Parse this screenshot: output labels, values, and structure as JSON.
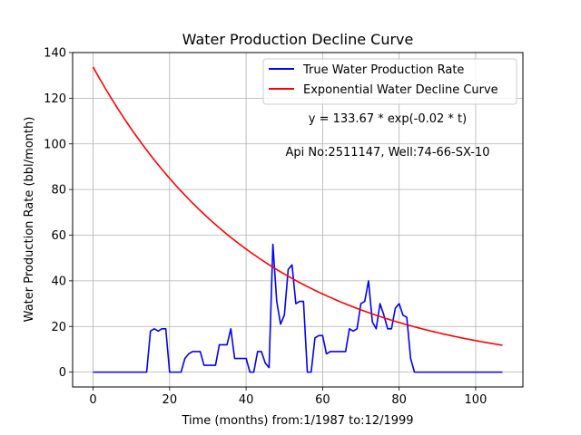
{
  "chart_data": {
    "type": "line",
    "title": "Water Production Decline Curve",
    "xlabel": "Time (months) from:1/1987 to:12/1999",
    "ylabel": "Water Production Rate (bbl/month)",
    "xlim": [
      -5.35,
      112.35
    ],
    "ylim": [
      -6.5,
      140
    ],
    "xticks": [
      0,
      20,
      40,
      60,
      80,
      100
    ],
    "yticks": [
      0,
      20,
      40,
      60,
      80,
      100,
      120,
      140
    ],
    "grid": true,
    "legend_position": "top-right",
    "annotations": [
      "y = 133.67 * exp(-0.02 * t)",
      "Api No:2511147, Well:74-66-SX-10"
    ],
    "series": [
      {
        "name": "True Water Production Rate",
        "color": "#0000ff",
        "style": "line",
        "x": [
          0,
          1,
          2,
          3,
          4,
          5,
          6,
          7,
          8,
          9,
          10,
          11,
          12,
          13,
          14,
          15,
          16,
          17,
          18,
          19,
          20,
          21,
          22,
          23,
          24,
          25,
          26,
          27,
          28,
          29,
          30,
          31,
          32,
          33,
          34,
          35,
          36,
          37,
          38,
          39,
          40,
          41,
          42,
          43,
          44,
          45,
          46,
          47,
          48,
          49,
          50,
          51,
          52,
          53,
          54,
          55,
          56,
          57,
          58,
          59,
          60,
          61,
          62,
          63,
          64,
          65,
          66,
          67,
          68,
          69,
          70,
          71,
          72,
          73,
          74,
          75,
          76,
          77,
          78,
          79,
          80,
          81,
          82,
          83,
          84,
          85,
          86,
          87,
          88,
          89,
          90,
          91,
          92,
          93,
          94,
          95,
          96,
          97,
          98,
          99,
          100,
          101,
          102,
          103,
          104,
          105,
          106,
          107
        ],
        "values": [
          0,
          0,
          0,
          0,
          0,
          0,
          0,
          0,
          0,
          0,
          0,
          0,
          0,
          0,
          0,
          18,
          19,
          18,
          19,
          19,
          0,
          0,
          0,
          0,
          6,
          8,
          9,
          9,
          9,
          3,
          3,
          3,
          3,
          12,
          12,
          12,
          19,
          6,
          6,
          6,
          6,
          0,
          0,
          9,
          9,
          4,
          2,
          56,
          31,
          21,
          25,
          45,
          47,
          30,
          31,
          31,
          0,
          0,
          15,
          16,
          16,
          8,
          9,
          9,
          9,
          9,
          9,
          19,
          18,
          19,
          30,
          31,
          40,
          22,
          19,
          30,
          25,
          19,
          19,
          28,
          30,
          25,
          24,
          6,
          0,
          0,
          0,
          0,
          0,
          0,
          0,
          0,
          0,
          0,
          0,
          0,
          0,
          0,
          0,
          0,
          0,
          0,
          0,
          0,
          0,
          0,
          0,
          0
        ]
      },
      {
        "name": "Exponential Water Decline Curve",
        "color": "#ff0000",
        "style": "function",
        "formula": {
          "a": 133.67,
          "b": -0.0227
        },
        "x_range": [
          0,
          107
        ]
      }
    ]
  }
}
